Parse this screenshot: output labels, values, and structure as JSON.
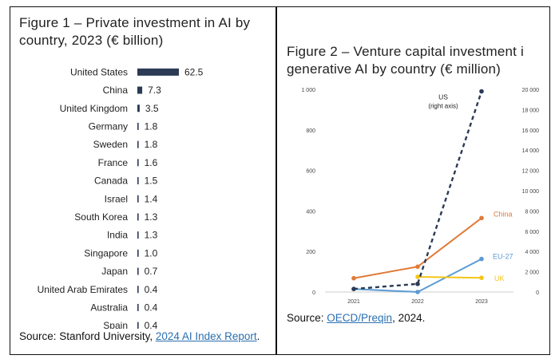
{
  "figure1": {
    "title": "Figure 1 – Private investment in AI by country, 2023 (€ billion)",
    "source_prefix": "Source: Stanford University, ",
    "source_link": "2024 AI Index Report",
    "source_suffix": "."
  },
  "figure2": {
    "title": "Figure 2 – Venture capital investment i generative AI by country (€ million)",
    "source_prefix": "Source: ",
    "source_link": "OECD/Preqin",
    "source_suffix": ", 2024."
  },
  "colors": {
    "bar": "#2b3a55",
    "us": "#2b3a55",
    "china": "#e07b39",
    "eu27": "#5b9bd5",
    "uk": "#f5c518",
    "text": "#222222"
  },
  "chart_data": [
    {
      "type": "bar",
      "orientation": "horizontal",
      "categories": [
        "United States",
        "China",
        "United Kingdom",
        "Germany",
        "Sweden",
        "France",
        "Canada",
        "Israel",
        "South Korea",
        "India",
        "Singapore",
        "Japan",
        "United Arab Emirates",
        "Australia",
        "Spain"
      ],
      "values": [
        62.5,
        7.3,
        3.5,
        1.8,
        1.8,
        1.6,
        1.5,
        1.4,
        1.3,
        1.3,
        1.0,
        0.7,
        0.4,
        0.4,
        0.4
      ],
      "value_labels": [
        "62.5",
        "7.3",
        "3.5",
        "1.8",
        "1.8",
        "1.6",
        "1.5",
        "1.4",
        "1.3",
        "1.3",
        "1.0",
        "0.7",
        "0.4",
        "0.4",
        "0.4"
      ],
      "title": "Figure 1 – Private investment in AI by country, 2023 (€ billion)"
    },
    {
      "type": "line",
      "x": [
        2021,
        2022,
        2023
      ],
      "x_tick_labels": [
        "2021",
        "2022",
        "2023"
      ],
      "ylim_left": [
        0,
        1000
      ],
      "ylim_right": [
        0,
        20000
      ],
      "left_ticks": [
        "0",
        "200",
        "400",
        "600",
        "800",
        "1 000"
      ],
      "right_ticks": [
        "0",
        "2 000",
        "4 000",
        "6 000",
        "8 000",
        "10 000",
        "12 000",
        "14 000",
        "16 000",
        "18 000",
        "20 000"
      ],
      "series": [
        {
          "name": "China",
          "axis": "left",
          "values": [
            68,
            125,
            365
          ],
          "style": "solid",
          "color": "#e07b39"
        },
        {
          "name": "EU-27",
          "axis": "left",
          "values": [
            15,
            0,
            163
          ],
          "style": "solid",
          "color": "#5b9bd5"
        },
        {
          "name": "UK",
          "axis": "left",
          "values": [
            null,
            75,
            70
          ],
          "style": "solid",
          "color": "#f5c518"
        },
        {
          "name": "US",
          "axis": "right",
          "values": [
            300,
            800,
            19800
          ],
          "style": "dashed",
          "color": "#2b3a55",
          "label_note": "(right axis)"
        }
      ],
      "title": "Figure 2 – Venture capital investment i generative AI by country (€ million)",
      "grid": false
    }
  ]
}
